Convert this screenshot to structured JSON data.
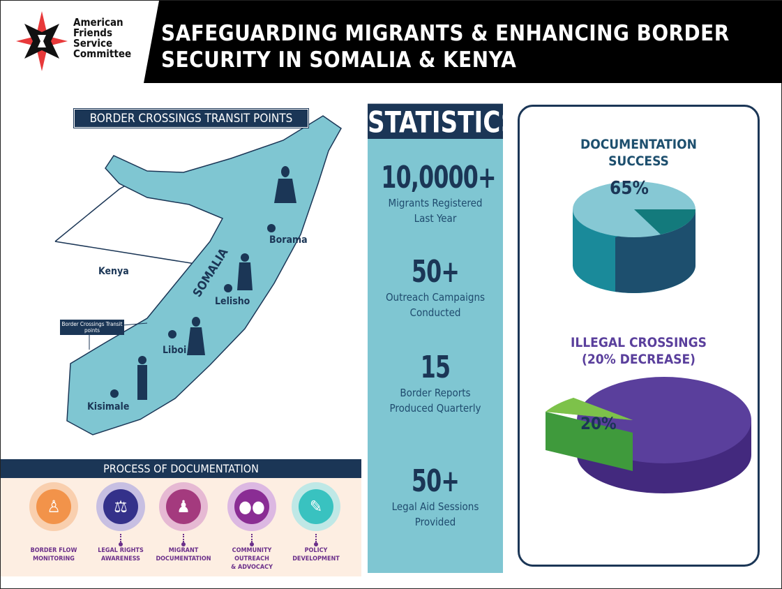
{
  "logo": {
    "text": [
      "American",
      "Friends",
      "Service",
      "Committee"
    ]
  },
  "title": {
    "line1": "SAFEGUARDING MIGRANTS & ENHANCING BORDER",
    "line2": "SECURITY IN SOMALIA & KENYA"
  },
  "map": {
    "label": "BORDER CROSSINGS TRANSIT POINTS",
    "country_somalia": "SOMALIA",
    "country_kenya": "Kenya",
    "legend_box": "Border Crossings Transit points",
    "cities": [
      "Borama",
      "Lelisho",
      "Liboi",
      "Kisimale"
    ]
  },
  "statistics": {
    "heading": "STATISTICS",
    "items": [
      {
        "number": "10,0000+",
        "label1": "Migrants Registered",
        "label2": "Last Year"
      },
      {
        "number": "50+",
        "label1": "Outreach Campaigns",
        "label2": "Conducted"
      },
      {
        "number": "15",
        "label1": "Border Reports",
        "label2": "Produced Quarterly"
      },
      {
        "number": "50+",
        "label1": "Legal Aid Sessions",
        "label2": "Provided"
      }
    ]
  },
  "charts": {
    "doc_title1": "DOCUMENTATION",
    "doc_title2": "SUCCESS",
    "doc_label": "65%",
    "ill_title1": "ILLEGAL CROSSINGS",
    "ill_title2": "(20% DECREASE)",
    "ill_label": "20%"
  },
  "chart_data": [
    {
      "type": "pie",
      "title": "DOCUMENTATION SUCCESS",
      "values": [
        65,
        35
      ],
      "labels": [
        "65%",
        ""
      ],
      "colors": [
        "#86c8d4",
        "#1d4f6e"
      ]
    },
    {
      "type": "pie",
      "title": "ILLEGAL CROSSINGS (20% DECREASE)",
      "values": [
        20,
        80
      ],
      "labels": [
        "20%",
        ""
      ],
      "colors": [
        "#7dc24a",
        "#5a3f9c"
      ]
    }
  ],
  "process": {
    "heading": "PROCESS OF DOCUMENTATION",
    "steps": [
      {
        "l1": "BORDER FLOW",
        "l2": "MONITORING",
        "icon": "officer-icon",
        "color": "#f2934a"
      },
      {
        "l1": "LEGAL RIGHTS",
        "l2": "AWARENESS",
        "icon": "law-book-icon",
        "color": "#34318a"
      },
      {
        "l1": "MIGRANT",
        "l2": "DOCUMENTATION",
        "icon": "person-document-icon",
        "color": "#a43a7e"
      },
      {
        "l1": "COMMUNITY OUTREACH",
        "l2": "& ADVOCACY",
        "icon": "group-icon",
        "color": "#8a2d94"
      },
      {
        "l1": "POLICY",
        "l2": "DEVELOPMENT",
        "icon": "clipboard-icon",
        "color": "#39c2c0"
      }
    ]
  }
}
